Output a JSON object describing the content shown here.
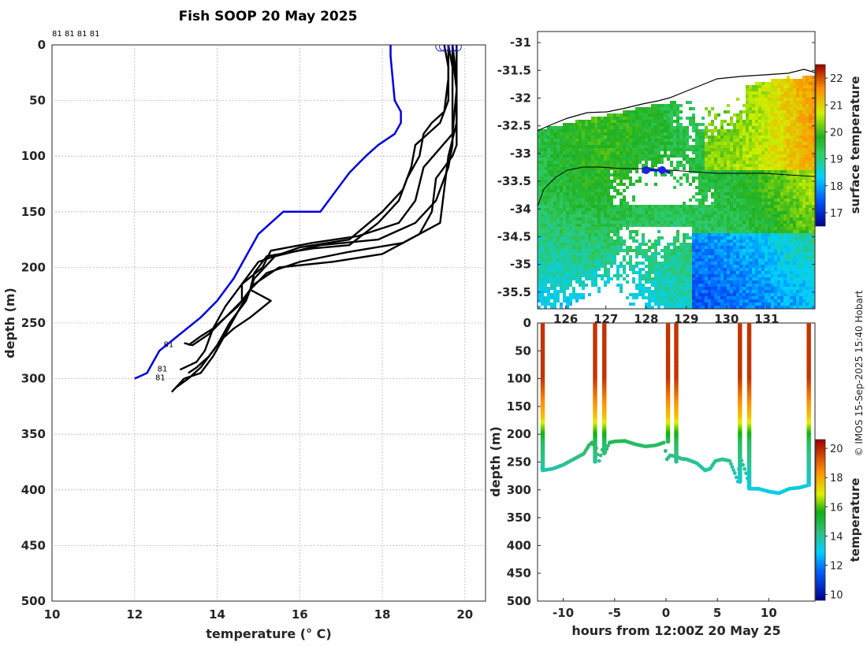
{
  "chart_data": [
    {
      "type": "line",
      "title": "Fish SOOP 20 May 2025",
      "xlabel": "temperature (° C)",
      "ylabel": "depth (m)",
      "xlim": [
        10,
        20.5
      ],
      "ylim": [
        500,
        0
      ],
      "xticks": [
        "10",
        "12",
        "14",
        "16",
        "18",
        "20"
      ],
      "yticks": [
        "0",
        "50",
        "100",
        "150",
        "200",
        "250",
        "300",
        "350",
        "400",
        "450",
        "500"
      ],
      "top_labels": "81 81 81 81",
      "end_labels": [
        "81",
        "81",
        "81"
      ],
      "climatology": {
        "name": "climatology",
        "color": "#0000dd",
        "points": [
          [
            18.2,
            0
          ],
          [
            18.2,
            10
          ],
          [
            18.25,
            30
          ],
          [
            18.3,
            50
          ],
          [
            18.45,
            60
          ],
          [
            18.45,
            70
          ],
          [
            18.3,
            80
          ],
          [
            17.9,
            90
          ],
          [
            17.6,
            100
          ],
          [
            17.2,
            115
          ],
          [
            16.9,
            130
          ],
          [
            16.5,
            150
          ],
          [
            15.6,
            150
          ],
          [
            15.0,
            170
          ],
          [
            14.7,
            190
          ],
          [
            14.4,
            210
          ],
          [
            14.0,
            230
          ],
          [
            13.6,
            245
          ],
          [
            13.1,
            260
          ],
          [
            12.6,
            275
          ],
          [
            12.3,
            295
          ],
          [
            12.0,
            300
          ]
        ]
      },
      "casts": [
        {
          "name": "cast 1",
          "points": [
            [
              19.6,
              0
            ],
            [
              19.7,
              20
            ],
            [
              19.7,
              60
            ],
            [
              19.7,
              90
            ],
            [
              19.6,
              110
            ],
            [
              19.3,
              140
            ],
            [
              18.8,
              160
            ],
            [
              17.9,
              175
            ],
            [
              16.5,
              180
            ],
            [
              15.4,
              190
            ],
            [
              14.9,
              210
            ],
            [
              14.7,
              230
            ],
            [
              14.3,
              250
            ],
            [
              14.0,
              270
            ],
            [
              13.6,
              290
            ],
            [
              13.3,
              300
            ],
            [
              13.0,
              308
            ]
          ]
        },
        {
          "name": "cast 2",
          "points": [
            [
              19.7,
              0
            ],
            [
              19.8,
              30
            ],
            [
              19.8,
              70
            ],
            [
              19.6,
              100
            ],
            [
              19.5,
              130
            ],
            [
              19.4,
              160
            ],
            [
              18.5,
              178
            ],
            [
              17.2,
              186
            ],
            [
              16.0,
              195
            ],
            [
              15.2,
              205
            ],
            [
              14.8,
              220
            ],
            [
              14.5,
              240
            ],
            [
              14.2,
              260
            ],
            [
              13.9,
              280
            ],
            [
              13.6,
              295
            ],
            [
              13.2,
              300
            ],
            [
              12.9,
              312
            ]
          ]
        },
        {
          "name": "cast 3",
          "points": [
            [
              19.5,
              0
            ],
            [
              19.6,
              20
            ],
            [
              19.6,
              50
            ],
            [
              19.4,
              70
            ],
            [
              19.1,
              80
            ],
            [
              18.8,
              90
            ],
            [
              18.7,
              110
            ],
            [
              18.5,
              130
            ],
            [
              18.0,
              150
            ],
            [
              17.2,
              175
            ],
            [
              16.0,
              182
            ],
            [
              15.0,
              195
            ],
            [
              14.6,
              215
            ],
            [
              14.2,
              235
            ],
            [
              13.9,
              255
            ],
            [
              13.7,
              275
            ],
            [
              13.5,
              285
            ],
            [
              13.1,
              292
            ]
          ]
        },
        {
          "name": "cast 4",
          "points": [
            [
              19.8,
              0
            ],
            [
              19.8,
              40
            ],
            [
              19.8,
              90
            ],
            [
              19.7,
              100
            ],
            [
              19.3,
              120
            ],
            [
              19.2,
              150
            ],
            [
              18.9,
              170
            ],
            [
              18.0,
              188
            ],
            [
              16.8,
              195
            ],
            [
              15.5,
              200
            ],
            [
              14.9,
              215
            ],
            [
              14.5,
              235
            ],
            [
              14.2,
              245
            ],
            [
              13.8,
              260
            ],
            [
              13.4,
              270
            ],
            [
              13.2,
              268
            ]
          ]
        },
        {
          "name": "cast 5",
          "points": [
            [
              19.7,
              0
            ],
            [
              19.7,
              10
            ],
            [
              19.8,
              40
            ],
            [
              19.7,
              80
            ],
            [
              19.0,
              110
            ],
            [
              18.8,
              140
            ],
            [
              18.4,
              160
            ],
            [
              17.4,
              172
            ],
            [
              16.3,
              178
            ],
            [
              15.3,
              185
            ],
            [
              15.1,
              200
            ],
            [
              14.6,
              215
            ],
            [
              14.6,
              230
            ],
            [
              14.2,
              245
            ],
            [
              13.9,
              255
            ],
            [
              13.6,
              262
            ],
            [
              13.3,
              270
            ]
          ]
        },
        {
          "name": "cast 6",
          "points": [
            [
              19.6,
              0
            ],
            [
              19.6,
              30
            ],
            [
              19.5,
              60
            ],
            [
              19.2,
              70
            ],
            [
              19.0,
              80
            ],
            [
              18.9,
              100
            ],
            [
              18.6,
              120
            ],
            [
              18.4,
              140
            ],
            [
              17.9,
              160
            ],
            [
              17.2,
              180
            ],
            [
              16.3,
              183
            ],
            [
              15.2,
              190
            ],
            [
              14.9,
              205
            ],
            [
              14.8,
              220
            ],
            [
              15.3,
              230
            ],
            [
              14.8,
              245
            ],
            [
              14.4,
              255
            ],
            [
              14.1,
              265
            ],
            [
              13.8,
              280
            ],
            [
              13.5,
              290
            ],
            [
              13.3,
              295
            ]
          ]
        }
      ]
    },
    {
      "type": "heatmap",
      "colorbar_label": "surface temperature",
      "colorbar_ticks": [
        "17",
        "18",
        "19",
        "20",
        "21",
        "22"
      ],
      "colorbar_range": [
        16.5,
        22.5
      ],
      "xlim": [
        125.3,
        132.2
      ],
      "ylim": [
        -35.8,
        -30.8
      ],
      "xticks": [
        "126",
        "127",
        "128",
        "129",
        "130",
        "131"
      ],
      "yticks": [
        "-31",
        "-31.5",
        "-32",
        "-32.5",
        "-33",
        "-33.5",
        "-34",
        "-34.5",
        "-35",
        "-35.5"
      ],
      "track": [
        [
          128.0,
          -33.3
        ],
        [
          128.2,
          -33.3
        ],
        [
          128.4,
          -33.3
        ],
        [
          128.6,
          -33.35
        ]
      ]
    },
    {
      "type": "scatter",
      "xlabel": "hours from 12:00Z 20 May 25",
      "ylabel": "depth (m)",
      "colorbar_label": "temperature",
      "colorbar_ticks": [
        "10",
        "12",
        "14",
        "16",
        "18",
        "20"
      ],
      "colorbar_range": [
        9.6,
        20.6
      ],
      "xlim": [
        -12.5,
        14.5
      ],
      "ylim": [
        500,
        0
      ],
      "xticks": [
        "-10",
        "-5",
        "0",
        "5",
        "10"
      ],
      "yticks": [
        "0",
        "50",
        "100",
        "150",
        "200",
        "250",
        "300",
        "350",
        "400",
        "450",
        "500"
      ],
      "bottom_track": [
        [
          -12,
          265
        ],
        [
          -11,
          262
        ],
        [
          -10,
          255
        ],
        [
          -9,
          245
        ],
        [
          -8,
          235
        ],
        [
          -7.5,
          220
        ],
        [
          -7.2,
          215
        ],
        [
          -6.8,
          225
        ],
        [
          -6.5,
          248
        ],
        [
          -6.2,
          228
        ],
        [
          -5.9,
          232
        ],
        [
          -5.5,
          215
        ],
        [
          -5,
          213
        ],
        [
          -4,
          212
        ],
        [
          -3,
          218
        ],
        [
          -2,
          222
        ],
        [
          -1,
          220
        ],
        [
          -0.2,
          215
        ],
        [
          0.1,
          245
        ],
        [
          0.4,
          238
        ],
        [
          1,
          240
        ],
        [
          1.5,
          244
        ],
        [
          2,
          245
        ],
        [
          3,
          252
        ],
        [
          3.8,
          265
        ],
        [
          4.3,
          262
        ],
        [
          4.8,
          248
        ],
        [
          5.5,
          245
        ],
        [
          6.2,
          248
        ],
        [
          6.7,
          270
        ],
        [
          7.0,
          285
        ],
        [
          7.2,
          240
        ],
        [
          7.8,
          270
        ],
        [
          8.2,
          298
        ],
        [
          9,
          298
        ],
        [
          10,
          303
        ],
        [
          11,
          306
        ],
        [
          12,
          298
        ],
        [
          13,
          296
        ],
        [
          13.8,
          292
        ]
      ],
      "casts_hours": [
        -12,
        -6.9,
        -6.0,
        0.2,
        1.0,
        7.2,
        8.1,
        13.9
      ],
      "cast_bottoms": [
        265,
        250,
        235,
        215,
        250,
        285,
        298,
        292
      ]
    }
  ],
  "side_note": "© IMOS 15-Sep-2025 15:40 Hobart"
}
